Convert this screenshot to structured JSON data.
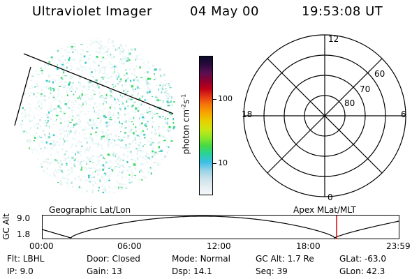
{
  "header": {
    "instrument": "Ultraviolet Imager",
    "date": "04 May 00",
    "time": "19:53:08 UT"
  },
  "colorbar": {
    "unit_label": "photon cm",
    "unit_exp1": "-2",
    "unit_s": "s",
    "unit_exp2": "-1",
    "ticks": [
      "100",
      "10"
    ],
    "colors": [
      "#0b0b2a",
      "#2a0a3c",
      "#5a0f52",
      "#8c0030",
      "#c00018",
      "#e63c14",
      "#f57a0a",
      "#f7a800",
      "#e6d200",
      "#c8e614",
      "#8ee628",
      "#46d846",
      "#28d29a",
      "#3cbee6",
      "#96d2e6",
      "#c8e2ea",
      "#e4eef2",
      "#f4f8fa"
    ]
  },
  "polar_plot": {
    "labels": {
      "top": "12",
      "bottom": "0",
      "left": "18",
      "right": "6",
      "ring_60": "60",
      "ring_70": "70",
      "ring_80": "80"
    }
  },
  "altitude_plot": {
    "ylabel": "GC Alt",
    "yticks": [
      "9.0",
      "1.8"
    ],
    "left_title": "Geographic Lat/Lon",
    "right_title": "Apex MLat/MLT",
    "xticks": [
      "00:00",
      "06:00",
      "12:00",
      "18:00",
      "23:59"
    ],
    "marker_color": "#e00000"
  },
  "footer": {
    "row1": [
      {
        "label": "Flt:",
        "value": "LBHL"
      },
      {
        "label": "Door:",
        "value": "Closed"
      },
      {
        "label": "Mode:",
        "value": "Normal"
      },
      {
        "label": "GC Alt:",
        "value": "1.7 Re"
      },
      {
        "label": "GLat:",
        "value": "-63.0"
      }
    ],
    "row2": [
      {
        "label": "IP:",
        "value": "9.0"
      },
      {
        "label": "Gain:",
        "value": "13"
      },
      {
        "label": "Dsp:",
        "value": "14.1"
      },
      {
        "label": "Seq:",
        "value": "39"
      },
      {
        "label": "GLon:",
        "value": "42.3"
      }
    ]
  }
}
